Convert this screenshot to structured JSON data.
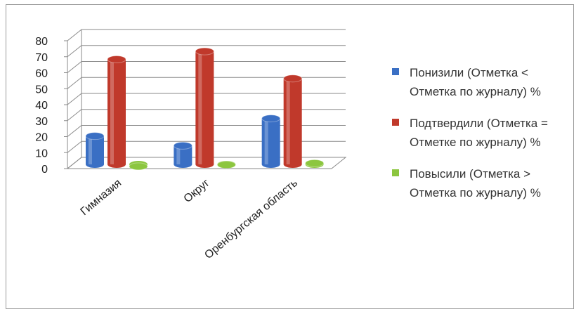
{
  "chart_data": {
    "type": "bar",
    "categories": [
      "Гимназия",
      "Округ",
      "Оренбургская область"
    ],
    "series": [
      {
        "name": "Понизили (Отметка < Отметка по журналу) %",
        "values": [
          23,
          17,
          34
        ],
        "color": "#3a6fc4"
      },
      {
        "name": "Подтвердили (Отметка = Отметке по журналу) %",
        "values": [
          71,
          76,
          59
        ],
        "color": "#c0392b"
      },
      {
        "name": "Повысили (Отметка > Отметка по журналу) %",
        "values": [
          4,
          5,
          6
        ],
        "color": "#8cc63f"
      }
    ],
    "ylim": [
      0,
      80
    ],
    "yticks": [
      0,
      10,
      20,
      30,
      40,
      50,
      60,
      70,
      80
    ],
    "grid": true,
    "legend_position": "right",
    "style": "3d-cylinder"
  }
}
